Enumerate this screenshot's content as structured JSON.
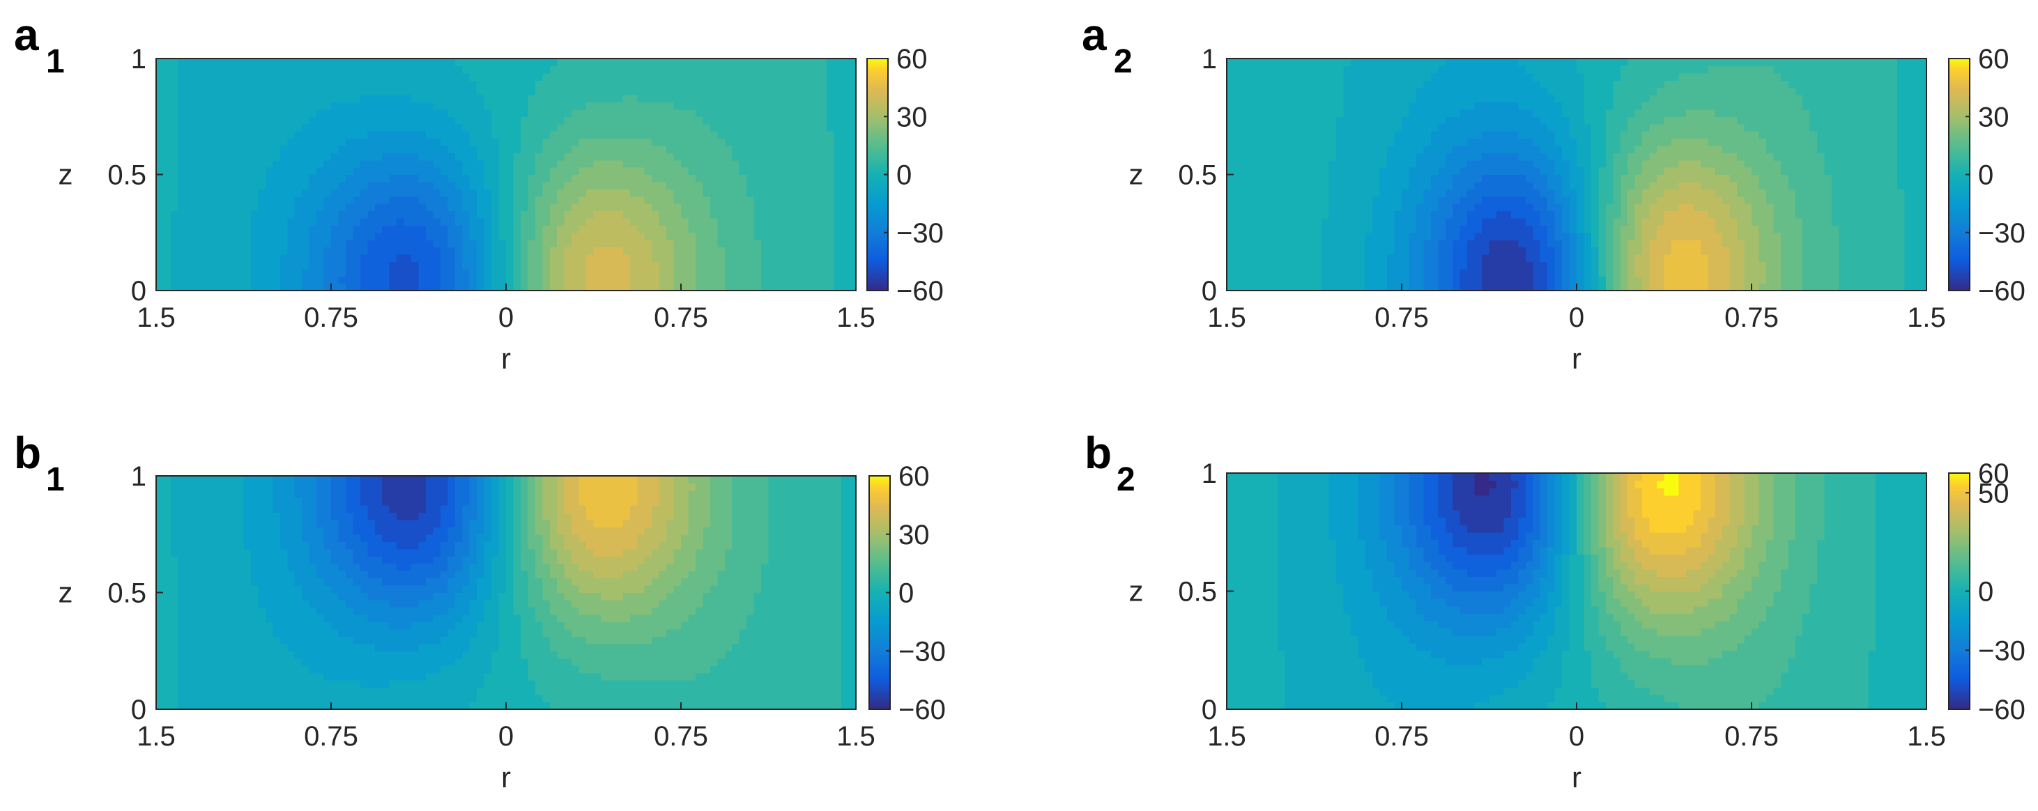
{
  "chart_data": [
    {
      "type": "heatmap",
      "panel_label": "a",
      "panel_sub": "1",
      "xlabel": "r",
      "ylabel": "z",
      "x_ticks": [
        "1.5",
        "0.75",
        "0",
        "0.75",
        "1.5"
      ],
      "y_ticks": [
        "0",
        "0.5",
        "1"
      ],
      "xlim": [
        -1.5,
        1.5
      ],
      "ylim": [
        0,
        1
      ],
      "colorbar": {
        "range": [
          -60,
          60
        ],
        "ticks": [
          "60",
          "30",
          "0",
          "−30",
          "−60"
        ],
        "tick_values": [
          60,
          30,
          0,
          -30,
          -60
        ]
      },
      "field": {
        "peak_positive": 42,
        "peak_positive_at": [
          0.38,
          0.05
        ],
        "peak_negative": -47,
        "peak_negative_at": [
          -0.4,
          0.05
        ],
        "extremes_at": "bottom"
      }
    },
    {
      "type": "heatmap",
      "panel_label": "a",
      "panel_sub": "2",
      "xlabel": "r",
      "ylabel": "z",
      "x_ticks": [
        "1.5",
        "0.75",
        "0",
        "0.75",
        "1.5"
      ],
      "y_ticks": [
        "0",
        "0.5",
        "1"
      ],
      "xlim": [
        -1.5,
        1.5
      ],
      "ylim": [
        0,
        1
      ],
      "colorbar": {
        "range": [
          -60,
          60
        ],
        "ticks": [
          "60",
          "30",
          "0",
          "−30",
          "−60"
        ],
        "tick_values": [
          60,
          30,
          0,
          -30,
          -60
        ]
      },
      "field": {
        "peak_positive": 55,
        "peak_positive_at": [
          0.35,
          0.08
        ],
        "peak_negative": -60,
        "peak_negative_at": [
          -0.2,
          0.05
        ],
        "extremes_at": "bottom"
      }
    },
    {
      "type": "heatmap",
      "panel_label": "b",
      "panel_sub": "1",
      "xlabel": "r",
      "ylabel": "z",
      "x_ticks": [
        "1.5",
        "0.75",
        "0",
        "0.75",
        "1.5"
      ],
      "y_ticks": [
        "0",
        "0.5",
        "1"
      ],
      "xlim": [
        -1.5,
        1.5
      ],
      "ylim": [
        0,
        1
      ],
      "colorbar": {
        "range": [
          -60,
          60
        ],
        "ticks": [
          "60",
          "30",
          "0",
          "−30",
          "−60"
        ],
        "tick_values": [
          60,
          30,
          0,
          -30,
          -60
        ]
      },
      "field": {
        "peak_positive": 50,
        "peak_positive_at": [
          0.38,
          0.95
        ],
        "peak_negative": -55,
        "peak_negative_at": [
          -0.38,
          0.95
        ],
        "extremes_at": "top"
      }
    },
    {
      "type": "heatmap",
      "panel_label": "b",
      "panel_sub": "2",
      "xlabel": "r",
      "ylabel": "z",
      "x_ticks": [
        "1.5",
        "0.75",
        "0",
        "0.75",
        "1.5"
      ],
      "y_ticks": [
        "0",
        "0.5",
        "1"
      ],
      "xlim": [
        -1.5,
        1.5
      ],
      "ylim": [
        0,
        1
      ],
      "colorbar": {
        "range": [
          -60,
          60
        ],
        "ticks": [
          "60",
          "50",
          "0",
          "−30",
          "−60"
        ],
        "tick_values": [
          60,
          50,
          0,
          -30,
          -60
        ]
      },
      "field": {
        "peak_positive": 62,
        "peak_positive_at": [
          0.3,
          0.95
        ],
        "peak_negative": -62,
        "peak_negative_at": [
          -0.3,
          0.95
        ],
        "extremes_at": "top"
      }
    }
  ]
}
